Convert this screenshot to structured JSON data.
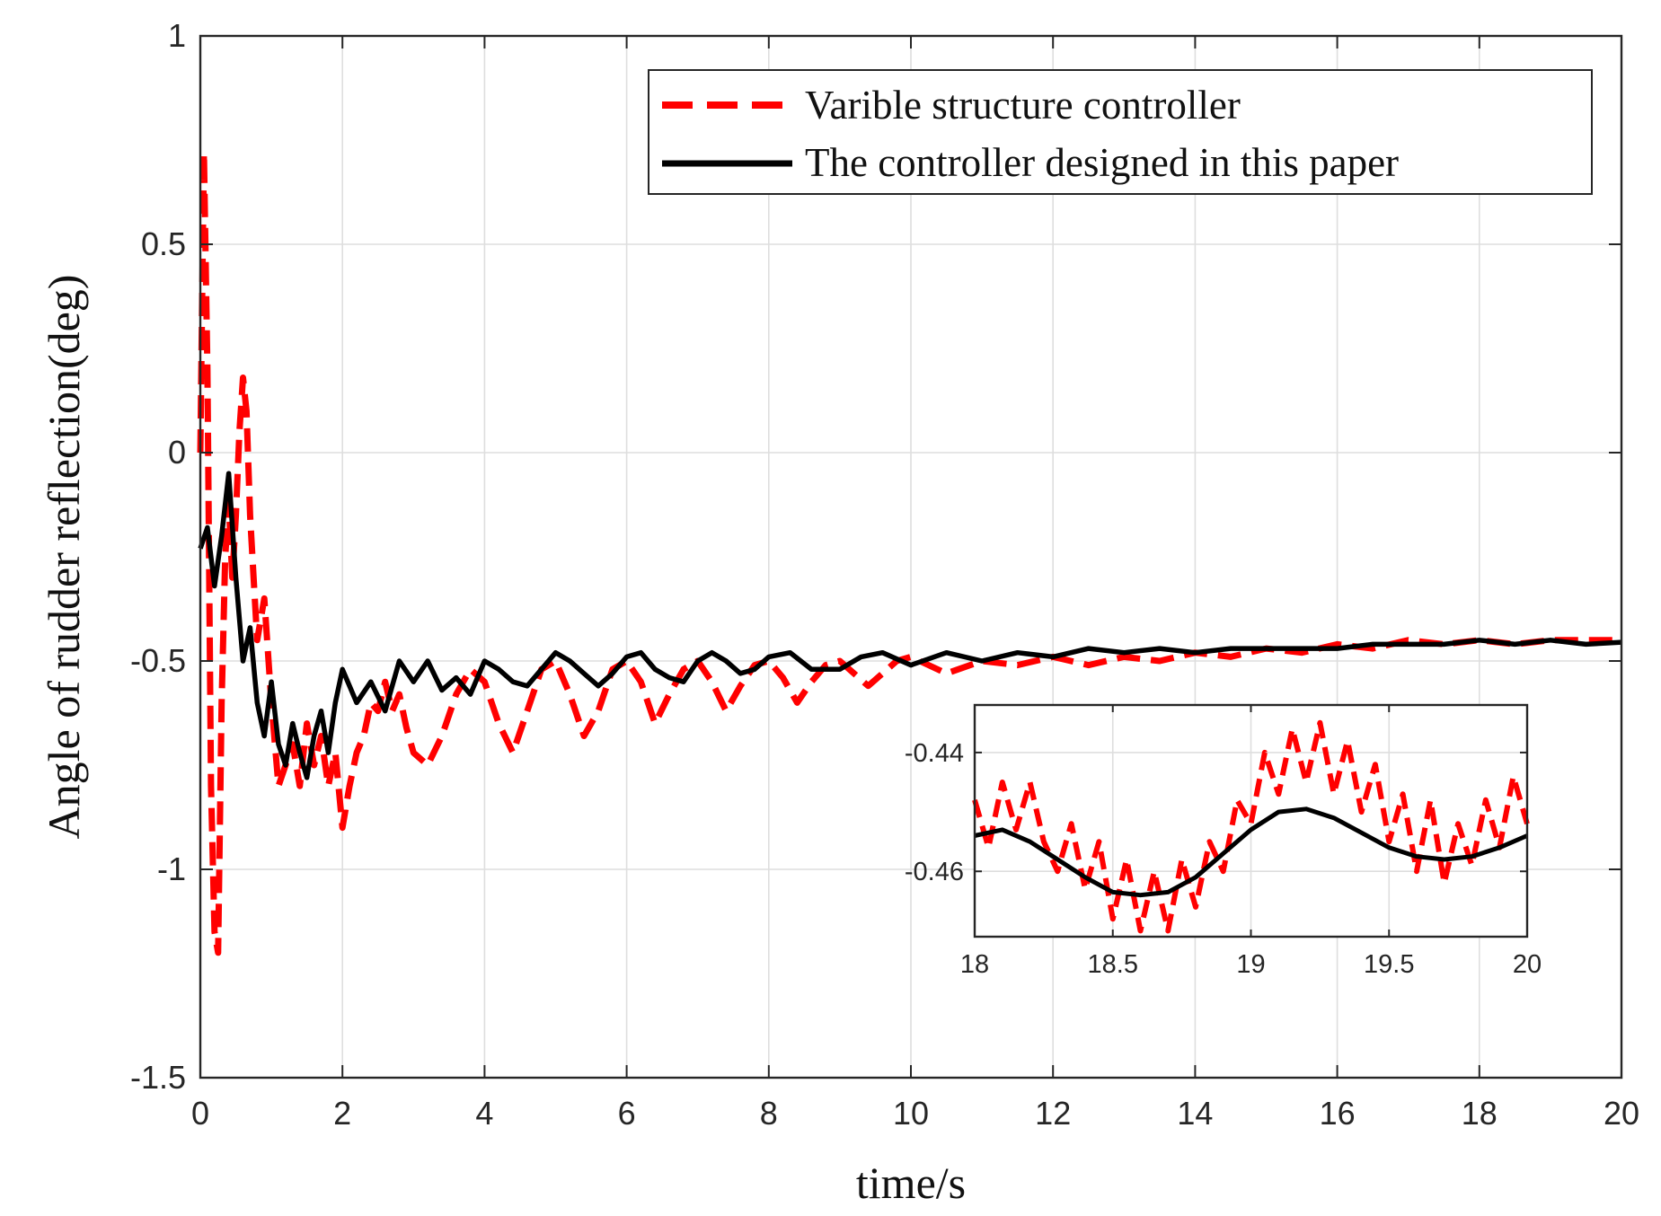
{
  "chart_data": [
    {
      "id": "main",
      "type": "line",
      "title": "",
      "xlabel": "time/s",
      "ylabel": "Angle of rudder reflection(deg)",
      "xlim": [
        0,
        20
      ],
      "ylim": [
        -1.5,
        1
      ],
      "xticks": [
        0,
        2,
        4,
        6,
        8,
        10,
        12,
        14,
        16,
        18,
        20
      ],
      "xtick_labels": [
        "0",
        "2",
        "4",
        "6",
        "8",
        "10",
        "12",
        "14",
        "16",
        "18",
        "20"
      ],
      "yticks": [
        1,
        0.5,
        0,
        -0.5,
        -1,
        -1.5
      ],
      "ytick_labels": [
        "1",
        "0.5",
        "0",
        "-0.5",
        "-1",
        "-1.5"
      ],
      "grid": true,
      "legend_position": "top-right",
      "series": [
        {
          "name": "Varible structure controller",
          "color": "#ff0000",
          "style": "dashed",
          "x": [
            0.0,
            0.05,
            0.1,
            0.15,
            0.2,
            0.25,
            0.3,
            0.35,
            0.4,
            0.45,
            0.5,
            0.55,
            0.6,
            0.65,
            0.7,
            0.75,
            0.8,
            0.9,
            1.0,
            1.1,
            1.2,
            1.3,
            1.4,
            1.5,
            1.6,
            1.7,
            1.8,
            1.9,
            2.0,
            2.1,
            2.2,
            2.3,
            2.4,
            2.5,
            2.6,
            2.7,
            2.8,
            2.9,
            3.0,
            3.2,
            3.4,
            3.6,
            3.8,
            4.0,
            4.2,
            4.4,
            4.6,
            4.8,
            5.0,
            5.2,
            5.4,
            5.6,
            5.8,
            6.0,
            6.2,
            6.4,
            6.6,
            6.8,
            7.0,
            7.2,
            7.4,
            7.6,
            7.8,
            8.0,
            8.2,
            8.4,
            8.6,
            8.8,
            9.0,
            9.2,
            9.4,
            9.6,
            9.8,
            10.0,
            10.5,
            11.0,
            11.5,
            12.0,
            12.5,
            13.0,
            13.5,
            14.0,
            14.5,
            15.0,
            15.5,
            16.0,
            16.5,
            17.0,
            17.5,
            18.0,
            18.5,
            19.0,
            19.5,
            20.0
          ],
          "y": [
            0.0,
            0.72,
            0.2,
            -0.8,
            -1.15,
            -1.2,
            -0.6,
            -0.25,
            -0.12,
            -0.3,
            -0.15,
            0.05,
            0.18,
            0.1,
            -0.15,
            -0.3,
            -0.45,
            -0.35,
            -0.6,
            -0.8,
            -0.75,
            -0.7,
            -0.8,
            -0.65,
            -0.75,
            -0.68,
            -0.8,
            -0.72,
            -0.9,
            -0.8,
            -0.72,
            -0.68,
            -0.6,
            -0.62,
            -0.55,
            -0.62,
            -0.58,
            -0.66,
            -0.72,
            -0.75,
            -0.68,
            -0.58,
            -0.52,
            -0.55,
            -0.65,
            -0.72,
            -0.62,
            -0.52,
            -0.5,
            -0.58,
            -0.68,
            -0.62,
            -0.52,
            -0.5,
            -0.55,
            -0.65,
            -0.58,
            -0.52,
            -0.5,
            -0.55,
            -0.62,
            -0.56,
            -0.51,
            -0.5,
            -0.54,
            -0.6,
            -0.55,
            -0.51,
            -0.5,
            -0.53,
            -0.56,
            -0.53,
            -0.5,
            -0.49,
            -0.53,
            -0.5,
            -0.51,
            -0.49,
            -0.51,
            -0.49,
            -0.5,
            -0.48,
            -0.49,
            -0.47,
            -0.48,
            -0.46,
            -0.47,
            -0.45,
            -0.46,
            -0.45,
            -0.46,
            -0.45,
            -0.45,
            -0.45
          ]
        },
        {
          "name": "The controller designed in this paper",
          "color": "#000000",
          "style": "solid",
          "x": [
            0.0,
            0.1,
            0.2,
            0.3,
            0.4,
            0.5,
            0.6,
            0.7,
            0.8,
            0.9,
            1.0,
            1.1,
            1.2,
            1.3,
            1.4,
            1.5,
            1.6,
            1.7,
            1.8,
            1.9,
            2.0,
            2.2,
            2.4,
            2.6,
            2.8,
            3.0,
            3.2,
            3.4,
            3.6,
            3.8,
            4.0,
            4.2,
            4.4,
            4.6,
            4.8,
            5.0,
            5.2,
            5.4,
            5.6,
            5.8,
            6.0,
            6.2,
            6.4,
            6.6,
            6.8,
            7.0,
            7.2,
            7.4,
            7.6,
            7.8,
            8.0,
            8.3,
            8.6,
            9.0,
            9.3,
            9.6,
            10.0,
            10.5,
            11.0,
            11.5,
            12.0,
            12.5,
            13.0,
            13.5,
            14.0,
            14.5,
            15.0,
            15.5,
            16.0,
            16.5,
            17.0,
            17.5,
            18.0,
            18.5,
            19.0,
            19.5,
            20.0
          ],
          "y": [
            -0.23,
            -0.18,
            -0.32,
            -0.2,
            -0.05,
            -0.3,
            -0.5,
            -0.42,
            -0.6,
            -0.68,
            -0.55,
            -0.7,
            -0.75,
            -0.65,
            -0.72,
            -0.78,
            -0.68,
            -0.62,
            -0.72,
            -0.6,
            -0.52,
            -0.6,
            -0.55,
            -0.62,
            -0.5,
            -0.55,
            -0.5,
            -0.57,
            -0.54,
            -0.58,
            -0.5,
            -0.52,
            -0.55,
            -0.56,
            -0.52,
            -0.48,
            -0.5,
            -0.53,
            -0.56,
            -0.53,
            -0.49,
            -0.48,
            -0.52,
            -0.54,
            -0.55,
            -0.5,
            -0.48,
            -0.5,
            -0.53,
            -0.52,
            -0.49,
            -0.48,
            -0.52,
            -0.52,
            -0.49,
            -0.48,
            -0.51,
            -0.48,
            -0.5,
            -0.48,
            -0.49,
            -0.47,
            -0.48,
            -0.47,
            -0.48,
            -0.47,
            -0.47,
            -0.47,
            -0.47,
            -0.46,
            -0.46,
            -0.46,
            -0.45,
            -0.46,
            -0.45,
            -0.46,
            -0.455
          ]
        }
      ]
    },
    {
      "id": "inset",
      "type": "line",
      "title": "",
      "xlim": [
        18,
        20
      ],
      "ylim": [
        -0.471,
        -0.432
      ],
      "xticks": [
        18,
        18.5,
        19,
        19.5,
        20
      ],
      "xtick_labels": [
        "18",
        "18.5",
        "19",
        "19.5",
        "20"
      ],
      "yticks": [
        -0.44,
        -0.46
      ],
      "ytick_labels": [
        "-0.44",
        "-0.46"
      ],
      "grid": true,
      "series": [
        {
          "name": "Varible structure controller",
          "color": "#ff0000",
          "style": "dashed",
          "x": [
            18.0,
            18.05,
            18.1,
            18.15,
            18.2,
            18.25,
            18.3,
            18.35,
            18.4,
            18.45,
            18.5,
            18.55,
            18.6,
            18.65,
            18.7,
            18.75,
            18.8,
            18.85,
            18.9,
            18.95,
            19.0,
            19.05,
            19.1,
            19.15,
            19.2,
            19.25,
            19.3,
            19.35,
            19.4,
            19.45,
            19.5,
            19.55,
            19.6,
            19.65,
            19.7,
            19.75,
            19.8,
            19.85,
            19.9,
            19.95,
            20.0
          ],
          "y": [
            -0.448,
            -0.456,
            -0.445,
            -0.453,
            -0.445,
            -0.455,
            -0.46,
            -0.452,
            -0.463,
            -0.455,
            -0.468,
            -0.458,
            -0.47,
            -0.46,
            -0.47,
            -0.458,
            -0.466,
            -0.455,
            -0.46,
            -0.448,
            -0.452,
            -0.44,
            -0.447,
            -0.436,
            -0.445,
            -0.435,
            -0.447,
            -0.438,
            -0.45,
            -0.442,
            -0.455,
            -0.447,
            -0.46,
            -0.448,
            -0.462,
            -0.452,
            -0.459,
            -0.448,
            -0.456,
            -0.444,
            -0.452
          ]
        },
        {
          "name": "The controller designed in this paper",
          "color": "#000000",
          "style": "solid",
          "x": [
            18.0,
            18.1,
            18.2,
            18.3,
            18.4,
            18.5,
            18.6,
            18.7,
            18.8,
            18.9,
            19.0,
            19.1,
            19.2,
            19.3,
            19.4,
            19.5,
            19.6,
            19.7,
            19.8,
            19.9,
            20.0
          ],
          "y": [
            -0.454,
            -0.453,
            -0.455,
            -0.458,
            -0.461,
            -0.4635,
            -0.464,
            -0.4635,
            -0.461,
            -0.457,
            -0.453,
            -0.45,
            -0.4495,
            -0.451,
            -0.4535,
            -0.456,
            -0.4575,
            -0.458,
            -0.4575,
            -0.456,
            -0.454
          ]
        }
      ]
    }
  ]
}
